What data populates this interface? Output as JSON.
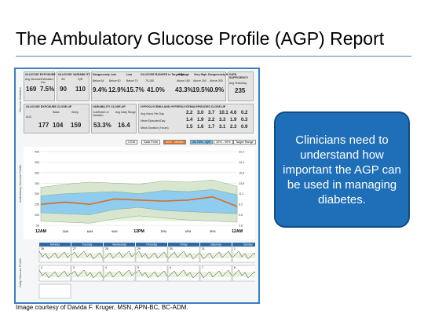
{
  "slide": {
    "title": "The Ambulatory Glucose Profile (AGP) Report",
    "callout": "Clinicians need to understand how important the AGP can be used in managing diabetes.",
    "credit": "Image courtesy of Davida F. Kruger, MSN, APN-BC, BC-ADM."
  },
  "report": {
    "side_labels": {
      "top": "Glucose Statistics",
      "chart": "Ambulatory Glucose Profile",
      "daily": "Daily Glucose Profile"
    },
    "row1": [
      {
        "head": "GLUCOSE EXPOSURE",
        "cols": [
          {
            "label": "Avg Glucose",
            "value": "169",
            "unit": "mg/dL"
          },
          {
            "label": "Estimated A1c",
            "value": "7.5%",
            "unit": ""
          }
        ]
      },
      {
        "head": "GLUCOSE VARIABILITY",
        "cols": [
          {
            "label": "SD",
            "value": "90",
            "unit": "mg/dL"
          },
          {
            "label": "IQR",
            "value": "110",
            "unit": "mg/dL"
          }
        ]
      },
      {
        "head": "Dangerously Low",
        "cols": [
          {
            "label": "Below 54",
            "value": "9.4%",
            "unit": ""
          },
          {
            "label": "Below 60",
            "value": "12.9%",
            "unit": ""
          }
        ]
      },
      {
        "head": "Low",
        "cols": [
          {
            "label": "Below 70",
            "value": "15.7%",
            "unit": ""
          }
        ]
      },
      {
        "head": "GLUCOSE RANGES in Target Range",
        "cols": [
          {
            "label": "70-180",
            "value": "41.0%",
            "unit": ""
          }
        ]
      },
      {
        "head": "High",
        "cols": [
          {
            "label": "Above 180",
            "value": "43.3%",
            "unit": ""
          }
        ]
      },
      {
        "head": "Very High",
        "cols": [
          {
            "label": "Above 250",
            "value": "19.5%",
            "unit": ""
          }
        ]
      },
      {
        "head": "Dangerously High",
        "cols": [
          {
            "label": "Above 300",
            "value": "0.9%",
            "unit": ""
          }
        ]
      },
      {
        "head": "DATA SUFFICIENCY",
        "cols": [
          {
            "label": "Avg Tests/Day",
            "value": "235",
            "unit": ""
          }
        ]
      }
    ],
    "row2": [
      {
        "head": "GLUCOSE EXPOSURE CLOSE-UP",
        "cols": [
          {
            "label": "AUC",
            "value": "177",
            "unit": ""
          },
          {
            "label": "Wake",
            "value": "104",
            "unit": ""
          },
          {
            "label": "Sleep",
            "value": "159",
            "unit": ""
          }
        ]
      },
      {
        "head": "VARIABILITY CLOSE-UP",
        "cols": [
          {
            "label": "Coefficient of Variation",
            "value": "53.3%",
            "unit": ""
          },
          {
            "label": "Avg Daily Range",
            "value": "16.4",
            "unit": ""
          }
        ]
      }
    ],
    "episodes": {
      "head": "HYPOGLYCEMIA AND HYPERGLYCEMIA EPISODES CLOSE-UP",
      "rows": [
        {
          "label": "Avg Hours Per Day",
          "values": [
            "2.2",
            "3.0",
            "3.7",
            "10.1",
            "4.6",
            "0.2"
          ]
        },
        {
          "label": "Mean Episodes/Day",
          "values": [
            "1.4",
            "1.9",
            "2.2",
            "3.3",
            "1.9",
            "0.3"
          ]
        },
        {
          "label": "Mean Duration (Hours)",
          "values": [
            "1.5",
            "1.6",
            "1.7",
            "3.1",
            "2.3",
            "0.9"
          ]
        }
      ]
    },
    "legend": {
      "cgm": "CGM",
      "data_point": "Data Point",
      "median": "50% - Median",
      "iqr": "25-75% - IQR",
      "range": "10% - 90%",
      "target": "Target Range"
    },
    "x_ticks": [
      "12AM",
      "3AM",
      "6AM",
      "9AM",
      "12PM",
      "3PM",
      "6PM",
      "9PM",
      "12AM"
    ],
    "x_minor": [
      "3AM",
      "6AM",
      "9AM",
      "12PM",
      "3PM",
      "6PM",
      "9PM"
    ],
    "y_ticks_left": [
      "400",
      "350",
      "300",
      "250",
      "200",
      "150",
      "100",
      "50"
    ],
    "y_ticks_right": [
      "22.2",
      "19.4",
      "16.6",
      "13.8",
      "11.1",
      "8.3",
      "5.5",
      "2.8"
    ],
    "days": [
      "Monday",
      "Tuesday",
      "Wednesday",
      "Thursday",
      "Friday",
      "Saturday",
      "Sunday"
    ],
    "date_row1": [
      "26",
      "27",
      "28",
      "29",
      "30",
      "31",
      "1"
    ],
    "date_row2": [
      "2",
      "3",
      "4",
      "5",
      "6",
      "7",
      "8"
    ],
    "colors": {
      "border": "#3b7fc4",
      "callout": "#1f6fb8",
      "median": "#e06a1e",
      "iqr": "#7fc4ea",
      "range": "#c9d8c0",
      "target": "#6a9a3a"
    }
  }
}
